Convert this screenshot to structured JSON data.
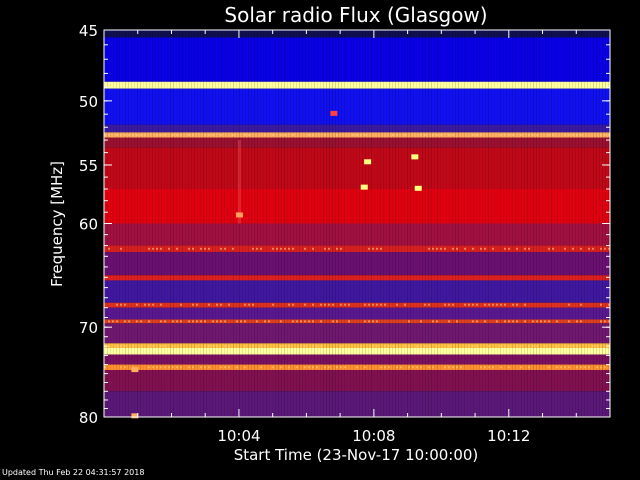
{
  "footer": {
    "updated": "Updated Thu Feb 22 04:31:57 2018"
  },
  "colors": {
    "background": "#000000",
    "axis": "#ffffff",
    "low_intensity": "#0a00e6",
    "mid_intensity": "#d00010",
    "high_intensity": "#ffff80"
  },
  "chart_data": {
    "type": "heatmap",
    "title": "Solar radio Flux (Glasgow)",
    "xlabel": "Start Time (23-Nov-17 10:00:00)",
    "ylabel": "Frequency [MHz]",
    "y_scale": "log",
    "ylim": [
      80,
      45
    ],
    "xlim_minutes": [
      0,
      15
    ],
    "x_ticks": [
      {
        "minute": 4,
        "label": "10:04"
      },
      {
        "minute": 8,
        "label": "10:08"
      },
      {
        "minute": 12,
        "label": "10:12"
      }
    ],
    "y_ticks": [
      {
        "mhz": 45,
        "label": "45"
      },
      {
        "mhz": 50,
        "label": "50"
      },
      {
        "mhz": 55,
        "label": "55"
      },
      {
        "mhz": 60,
        "label": "60"
      },
      {
        "mhz": 70,
        "label": "70"
      },
      {
        "mhz": 80,
        "label": "80"
      }
    ],
    "bands": [
      {
        "from": 45.0,
        "to": 45.5,
        "color": "#101050"
      },
      {
        "from": 45.5,
        "to": 48.6,
        "color": "#0a00e6"
      },
      {
        "from": 48.6,
        "to": 49.1,
        "color": "#ffffa0"
      },
      {
        "from": 49.1,
        "to": 51.8,
        "color": "#1010f0"
      },
      {
        "from": 51.8,
        "to": 52.4,
        "color": "#3a1aa0"
      },
      {
        "from": 52.4,
        "to": 52.8,
        "color": "#ffb060"
      },
      {
        "from": 52.8,
        "to": 53.6,
        "color": "#9a1030"
      },
      {
        "from": 53.6,
        "to": 57.0,
        "color": "#c00818"
      },
      {
        "from": 57.0,
        "to": 60.0,
        "color": "#e00010"
      },
      {
        "from": 60.0,
        "to": 62.0,
        "color": "#a01040"
      },
      {
        "from": 62.0,
        "to": 62.6,
        "color": "#d82020"
      },
      {
        "from": 62.6,
        "to": 64.8,
        "color": "#6a1070"
      },
      {
        "from": 64.8,
        "to": 65.3,
        "color": "#e02020"
      },
      {
        "from": 65.3,
        "to": 67.5,
        "color": "#4018a0"
      },
      {
        "from": 67.5,
        "to": 68.0,
        "color": "#e03020"
      },
      {
        "from": 68.0,
        "to": 69.2,
        "color": "#5a1890"
      },
      {
        "from": 69.2,
        "to": 69.6,
        "color": "#e04020"
      },
      {
        "from": 69.6,
        "to": 71.7,
        "color": "#701870"
      },
      {
        "from": 71.7,
        "to": 72.2,
        "color": "#ffc040"
      },
      {
        "from": 72.2,
        "to": 72.9,
        "color": "#ffffa0"
      },
      {
        "from": 72.9,
        "to": 74.0,
        "color": "#7a1060"
      },
      {
        "from": 74.0,
        "to": 74.6,
        "color": "#ff9030"
      },
      {
        "from": 74.6,
        "to": 77.0,
        "color": "#801050"
      },
      {
        "from": 77.0,
        "to": 80.0,
        "color": "#5a1878"
      }
    ],
    "bursts": [
      {
        "minute": 7.8,
        "mhz": 54.7,
        "color": "#ffff80"
      },
      {
        "minute": 9.2,
        "mhz": 54.3,
        "color": "#ffff80"
      },
      {
        "minute": 7.7,
        "mhz": 56.8,
        "color": "#ffff80"
      },
      {
        "minute": 9.3,
        "mhz": 56.9,
        "color": "#ffff80"
      },
      {
        "minute": 4.0,
        "mhz": 59.2,
        "color": "#ffa060"
      },
      {
        "minute": 6.8,
        "mhz": 50.9,
        "color": "#ff4040"
      },
      {
        "minute": 0.9,
        "mhz": 74.5,
        "color": "#ffb060"
      },
      {
        "minute": 0.9,
        "mhz": 79.8,
        "color": "#ffb060"
      }
    ]
  }
}
